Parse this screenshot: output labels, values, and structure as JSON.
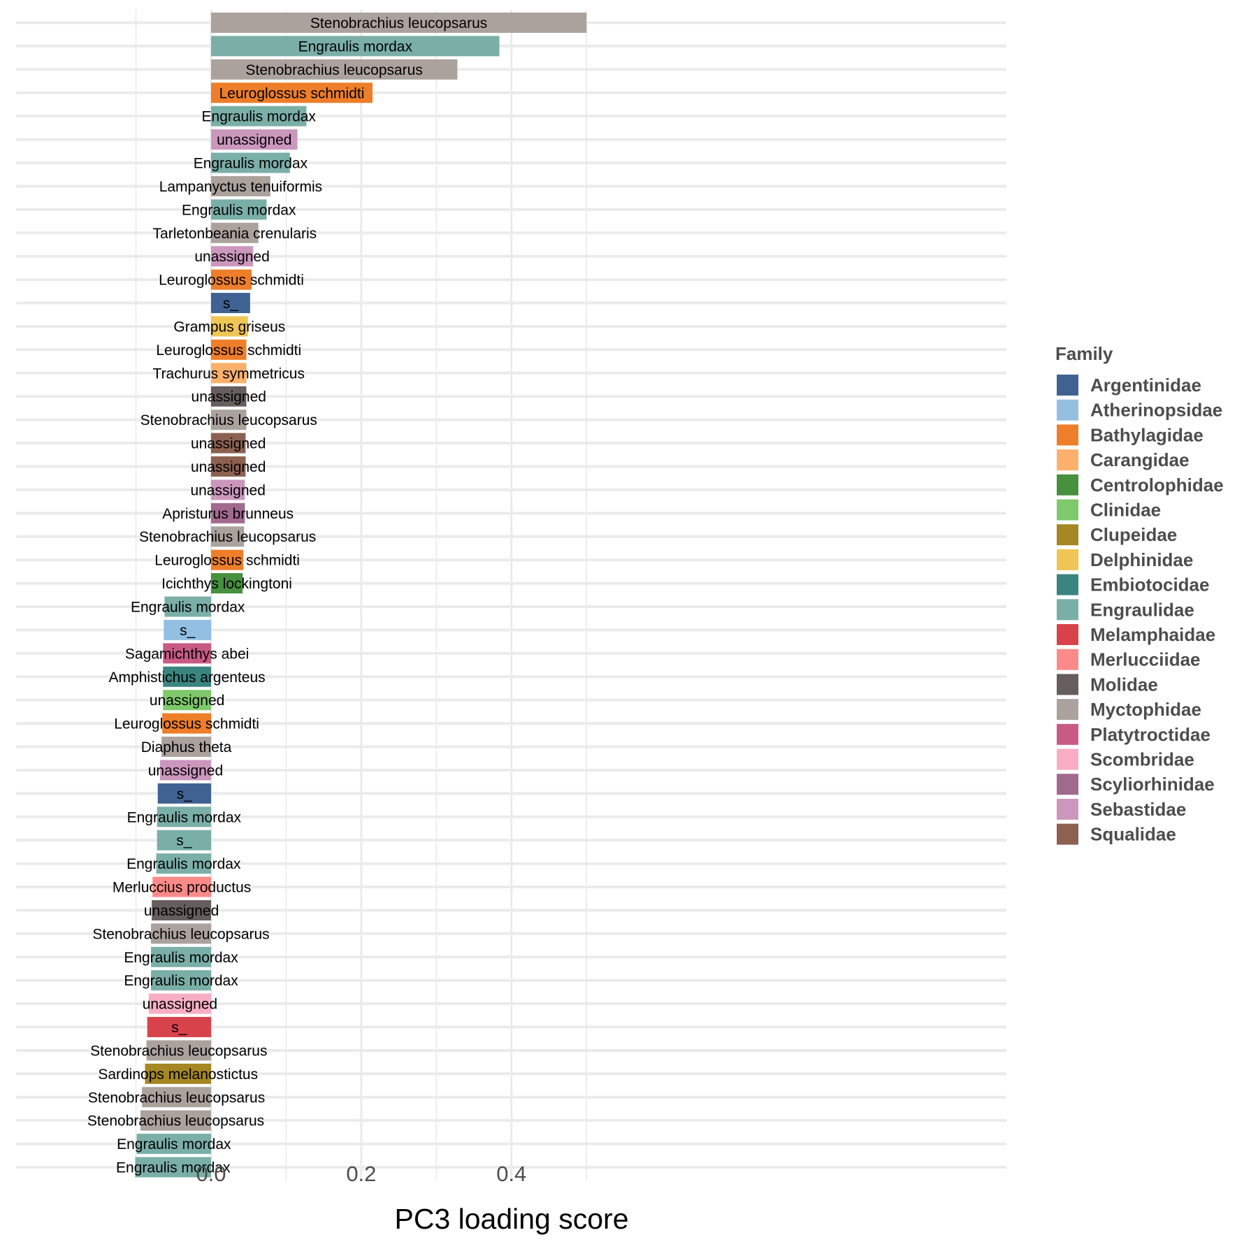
{
  "chart_data": {
    "type": "bar",
    "orientation": "horizontal",
    "xlabel": "PC3 loading score",
    "xlim": [
      -0.1,
      0.53
    ],
    "x_ticks": [
      0.0,
      0.2,
      0.4
    ],
    "x_tick_labels": [
      "0.0",
      "0.2",
      "0.4"
    ],
    "grid": true,
    "legend": {
      "title": "Family",
      "placement": "right",
      "entries": [
        {
          "name": "Argentinidae",
          "color": "#3f6293"
        },
        {
          "name": "Atherinopsidae",
          "color": "#93bfe3"
        },
        {
          "name": "Bathylagidae",
          "color": "#ee7e2a"
        },
        {
          "name": "Carangidae",
          "color": "#fdb06b"
        },
        {
          "name": "Centrolophidae",
          "color": "#46903e"
        },
        {
          "name": "Clinidae",
          "color": "#7ec96b"
        },
        {
          "name": "Clupeidae",
          "color": "#a58723"
        },
        {
          "name": "Delphinidae",
          "color": "#efc555"
        },
        {
          "name": "Embiotocidae",
          "color": "#3a8580"
        },
        {
          "name": "Engraulidae",
          "color": "#7aafa8"
        },
        {
          "name": "Melamphaidae",
          "color": "#d8434b"
        },
        {
          "name": "Merlucciidae",
          "color": "#fb8a88"
        },
        {
          "name": "Molidae",
          "color": "#655e5d"
        },
        {
          "name": "Myctophidae",
          "color": "#aba29e"
        },
        {
          "name": "Platytroctidae",
          "color": "#c95b83"
        },
        {
          "name": "Scombridae",
          "color": "#f7aec4"
        },
        {
          "name": "Scyliorhinidae",
          "color": "#a2698f"
        },
        {
          "name": "Sebastidae",
          "color": "#cb97bd"
        },
        {
          "name": "Squalidae",
          "color": "#8c6152"
        }
      ]
    },
    "bars": [
      {
        "label": "Stenobrachius leucopsarus",
        "family": "Myctophidae",
        "value": 0.5
      },
      {
        "label": "Engraulis mordax",
        "family": "Engraulidae",
        "value": 0.384
      },
      {
        "label": "Stenobrachius leucopsarus",
        "family": "Myctophidae",
        "value": 0.328
      },
      {
        "label": "Leuroglossus schmidti",
        "family": "Bathylagidae",
        "value": 0.215
      },
      {
        "label": "Engraulis mordax",
        "family": "Engraulidae",
        "value": 0.127
      },
      {
        "label": "unassigned",
        "family": "Sebastidae",
        "value": 0.115
      },
      {
        "label": "Engraulis mordax",
        "family": "Engraulidae",
        "value": 0.105
      },
      {
        "label": "Lampanyctus tenuiformis",
        "family": "Myctophidae",
        "value": 0.079
      },
      {
        "label": "Engraulis mordax",
        "family": "Engraulidae",
        "value": 0.074
      },
      {
        "label": "Tarletonbeania crenularis",
        "family": "Myctophidae",
        "value": 0.063
      },
      {
        "label": "unassigned",
        "family": "Sebastidae",
        "value": 0.056
      },
      {
        "label": "Leuroglossus schmidti",
        "family": "Bathylagidae",
        "value": 0.054
      },
      {
        "label": "s_",
        "family": "Argentinidae",
        "value": 0.052
      },
      {
        "label": "Grampus griseus",
        "family": "Delphinidae",
        "value": 0.049
      },
      {
        "label": "Leuroglossus schmidti",
        "family": "Bathylagidae",
        "value": 0.047
      },
      {
        "label": "Trachurus symmetricus",
        "family": "Carangidae",
        "value": 0.047
      },
      {
        "label": "unassigned",
        "family": "Molidae",
        "value": 0.047
      },
      {
        "label": "Stenobrachius leucopsarus",
        "family": "Myctophidae",
        "value": 0.047
      },
      {
        "label": "unassigned",
        "family": "Squalidae",
        "value": 0.046
      },
      {
        "label": "unassigned",
        "family": "Squalidae",
        "value": 0.046
      },
      {
        "label": "unassigned",
        "family": "Sebastidae",
        "value": 0.045
      },
      {
        "label": "Apristurus brunneus",
        "family": "Scyliorhinidae",
        "value": 0.045
      },
      {
        "label": "Stenobrachius leucopsarus",
        "family": "Myctophidae",
        "value": 0.044
      },
      {
        "label": "Leuroglossus schmidti",
        "family": "Bathylagidae",
        "value": 0.043
      },
      {
        "label": "Icichthys lockingtoni",
        "family": "Centrolophidae",
        "value": 0.042
      },
      {
        "label": "Engraulis mordax",
        "family": "Engraulidae",
        "value": -0.062
      },
      {
        "label": "s_",
        "family": "Atherinopsidae",
        "value": -0.063
      },
      {
        "label": "Sagamichthys abei",
        "family": "Platytroctidae",
        "value": -0.064
      },
      {
        "label": "Amphistichus argenteus",
        "family": "Embiotocidae",
        "value": -0.064
      },
      {
        "label": "unassigned",
        "family": "Clinidae",
        "value": -0.064
      },
      {
        "label": "Leuroglossus schmidti",
        "family": "Bathylagidae",
        "value": -0.065
      },
      {
        "label": "Diaphus theta",
        "family": "Myctophidae",
        "value": -0.066
      },
      {
        "label": "unassigned",
        "family": "Sebastidae",
        "value": -0.068
      },
      {
        "label": "s_",
        "family": "Argentinidae",
        "value": -0.071
      },
      {
        "label": "Engraulis mordax",
        "family": "Engraulidae",
        "value": -0.072
      },
      {
        "label": "s_",
        "family": "Engraulidae",
        "value": -0.072
      },
      {
        "label": "Engraulis mordax",
        "family": "Engraulidae",
        "value": -0.073
      },
      {
        "label": "Merluccius productus",
        "family": "Merlucciidae",
        "value": -0.078
      },
      {
        "label": "unassigned",
        "family": "Molidae",
        "value": -0.079
      },
      {
        "label": "Stenobrachius leucopsarus",
        "family": "Myctophidae",
        "value": -0.08
      },
      {
        "label": "Engraulis mordax",
        "family": "Engraulidae",
        "value": -0.08
      },
      {
        "label": "Engraulis mordax",
        "family": "Engraulidae",
        "value": -0.08
      },
      {
        "label": "unassigned",
        "family": "Scombridae",
        "value": -0.083
      },
      {
        "label": "s_",
        "family": "Melamphaidae",
        "value": -0.085
      },
      {
        "label": "Stenobrachius leucopsarus",
        "family": "Myctophidae",
        "value": -0.086
      },
      {
        "label": "Sardinops melanostictus",
        "family": "Clupeidae",
        "value": -0.088
      },
      {
        "label": "Stenobrachius leucopsarus",
        "family": "Myctophidae",
        "value": -0.092
      },
      {
        "label": "Stenobrachius leucopsarus",
        "family": "Myctophidae",
        "value": -0.094
      },
      {
        "label": "Engraulis mordax",
        "family": "Engraulidae",
        "value": -0.099
      },
      {
        "label": "Engraulis mordax",
        "family": "Engraulidae",
        "value": -0.101
      }
    ]
  }
}
